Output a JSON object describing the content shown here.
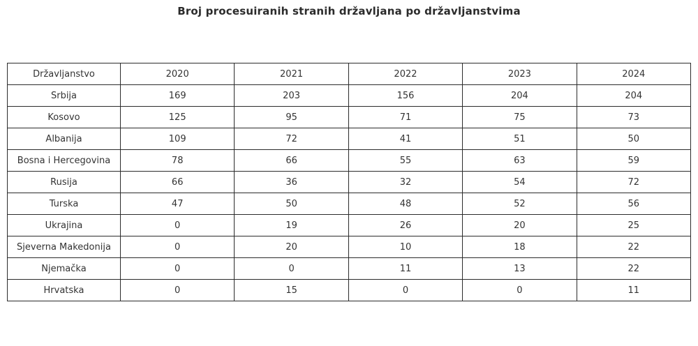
{
  "title": "Broj procesuiranih stranih državljana po državljanstvima",
  "chart_data": {
    "type": "table",
    "title": "Broj procesuiranih stranih državljana po državljanstvima",
    "columns": [
      "Državljanstvo",
      "2020",
      "2021",
      "2022",
      "2023",
      "2024"
    ],
    "rows": [
      {
        "label": "Srbija",
        "values": [
          169,
          203,
          156,
          204,
          204
        ]
      },
      {
        "label": "Kosovo",
        "values": [
          125,
          95,
          71,
          75,
          73
        ]
      },
      {
        "label": "Albanija",
        "values": [
          109,
          72,
          41,
          51,
          50
        ]
      },
      {
        "label": "Bosna i Hercegovina",
        "values": [
          78,
          66,
          55,
          63,
          59
        ]
      },
      {
        "label": "Rusija",
        "values": [
          66,
          36,
          32,
          54,
          72
        ]
      },
      {
        "label": "Turska",
        "values": [
          47,
          50,
          48,
          52,
          56
        ]
      },
      {
        "label": "Ukrajina",
        "values": [
          0,
          19,
          26,
          20,
          25
        ]
      },
      {
        "label": "Sjeverna Makedonija",
        "values": [
          0,
          20,
          10,
          18,
          22
        ]
      },
      {
        "label": "Njemačka",
        "values": [
          0,
          0,
          11,
          13,
          22
        ]
      },
      {
        "label": "Hrvatska",
        "values": [
          0,
          15,
          0,
          0,
          11
        ]
      }
    ],
    "layout": {
      "legend_position": "none",
      "grid": "full-borders"
    },
    "colors": {
      "border": "#2b2b2b",
      "text": "#333333",
      "title_text": "#2b2b2b",
      "background": "#ffffff"
    }
  }
}
